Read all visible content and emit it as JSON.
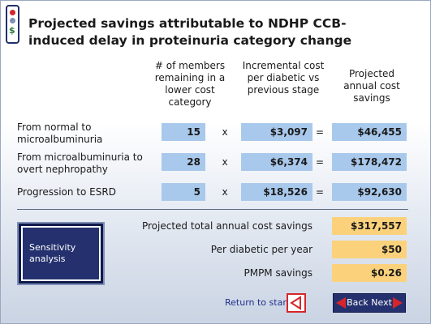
{
  "title": "Projected savings attributable to NDHP CCB-induced delay in proteinuria category change",
  "columns": {
    "members": "# of members remaining in a lower cost category",
    "incremental": "Incremental cost per diabetic vs previous stage",
    "projected": "Projected annual cost savings"
  },
  "rows": [
    {
      "label": "From normal to microalbuminuria",
      "members": "15",
      "cost": "$3,097",
      "savings": "$46,455"
    },
    {
      "label": "From microalbuminuria to overt nephropathy",
      "members": "28",
      "cost": "$6,374",
      "savings": "$178,472"
    },
    {
      "label": "Progression to ESRD",
      "members": "5",
      "cost": "$18,526",
      "savings": "$92,630"
    }
  ],
  "operators": {
    "times": "x",
    "equals": "="
  },
  "summary": [
    {
      "label": "Projected total annual cost savings",
      "value": "$317,557"
    },
    {
      "label": "Per diabetic per year",
      "value": "$50"
    },
    {
      "label": "PMPM savings",
      "value": "$0.26"
    }
  ],
  "buttons": {
    "sensitivity": "Sensitivity analysis",
    "return_to_start": "Return to start",
    "back_next": "Back Next"
  },
  "colors": {
    "value_box": "#a9c9ec",
    "summary_box": "#fbd27b",
    "button_navy": "#25316e",
    "accent_red": "#d6252b"
  }
}
